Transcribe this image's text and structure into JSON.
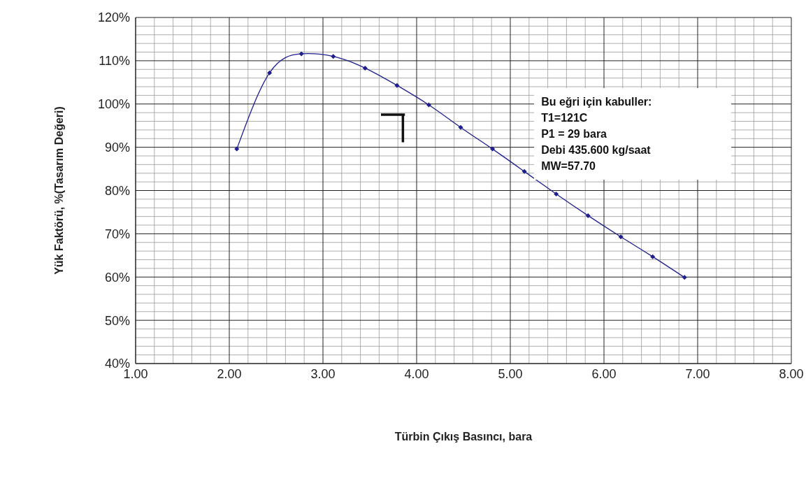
{
  "chart_data": {
    "type": "line",
    "xlabel": "Türbin Çıkış Basıncı, bara",
    "ylabel": "Yük Faktörü, %(Tasarım Değeri)",
    "x": [
      2.08,
      2.43,
      2.77,
      3.11,
      3.45,
      3.79,
      4.13,
      4.47,
      4.81,
      5.15,
      5.49,
      5.83,
      6.18,
      6.52,
      6.86
    ],
    "series": [
      {
        "color": "#1f1f8f",
        "values": [
          89.6,
          107.2,
          111.6,
          111.0,
          108.3,
          104.3,
          99.8,
          94.6,
          89.6,
          84.4,
          79.2,
          74.2,
          69.3,
          64.7,
          59.9
        ]
      }
    ],
    "xlim": [
      1,
      8
    ],
    "xticks": [
      {
        "value": 1,
        "label": "1.00"
      },
      {
        "value": 2,
        "label": "2.00"
      },
      {
        "value": 3,
        "label": "3.00"
      },
      {
        "value": 4,
        "label": "4.00"
      },
      {
        "value": 5,
        "label": "5.00"
      },
      {
        "value": 6,
        "label": "6.00"
      },
      {
        "value": 7,
        "label": "7.00"
      },
      {
        "value": 8,
        "label": "8.00"
      }
    ],
    "ylim": [
      40,
      120
    ],
    "yticks": [
      {
        "value": 40,
        "label": "40%"
      },
      {
        "value": 50,
        "label": "50%"
      },
      {
        "value": 60,
        "label": "60%"
      },
      {
        "value": 70,
        "label": "70%"
      },
      {
        "value": 80,
        "label": "80%"
      },
      {
        "value": 90,
        "label": "90%"
      },
      {
        "value": 100,
        "label": "100%"
      },
      {
        "value": 110,
        "label": "110%"
      },
      {
        "value": 120,
        "label": "120%"
      }
    ],
    "grid": true,
    "marker": "diamond",
    "line_style": "solid",
    "legend": false,
    "annotations": [
      "Bu eğri için kabuller:",
      "T1=121C",
      "P1 = 29 bara",
      "Debi 435.600 kg/saat",
      "MW=57.70"
    ]
  }
}
